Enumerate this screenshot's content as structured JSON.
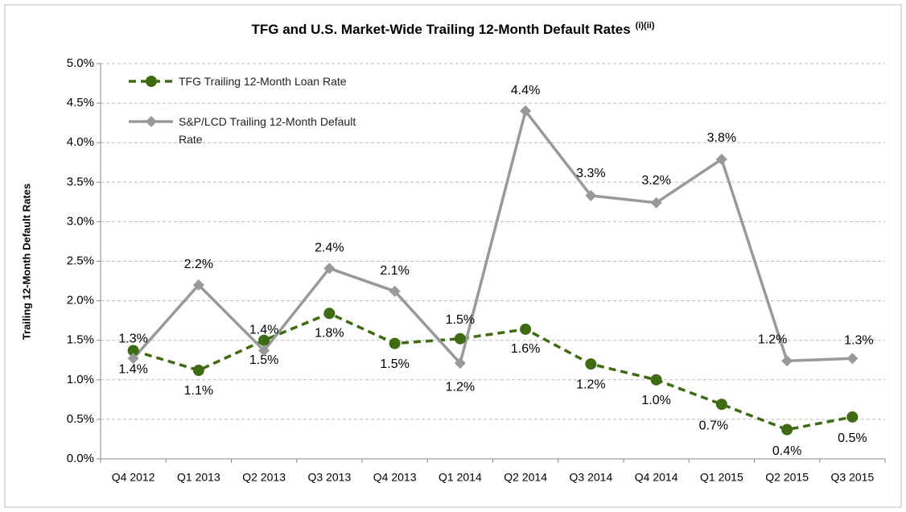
{
  "chart_data": {
    "type": "line",
    "title": "TFG and U.S. Market-Wide Trailing 12-Month  Default Rates",
    "title_note": "(i)(ii)",
    "y_label": "Trailing  12-Month Default Rates",
    "categories": [
      "Q4 2012",
      "Q1 2013",
      "Q2 2013",
      "Q3 2013",
      "Q4 2013",
      "Q1 2014",
      "Q2 2014",
      "Q3 2014",
      "Q4 2014",
      "Q1 2015",
      "Q2 2015",
      "Q3 2015"
    ],
    "series": [
      {
        "name": "TFG Trailing 12-Month Loan Rate",
        "color": "#3f6b12",
        "dashed": true,
        "marker": "circle",
        "values": [
          1.37,
          1.12,
          1.5,
          1.84,
          1.46,
          1.52,
          1.64,
          1.2,
          1.0,
          0.69,
          0.37,
          0.53
        ],
        "value_labels": [
          "1.4%",
          "1.1%",
          "1.5%",
          "1.8%",
          "1.5%",
          "1.5%",
          "1.6%",
          "1.2%",
          "1.0%",
          "0.7%",
          "0.4%",
          "0.5%"
        ]
      },
      {
        "name": "S&P/LCD  Trailing 12-Month Default Rate",
        "color": "#999999",
        "dashed": false,
        "marker": "diamond",
        "values": [
          1.27,
          2.2,
          1.37,
          2.41,
          2.12,
          1.21,
          4.4,
          3.33,
          3.24,
          3.79,
          1.24,
          1.27
        ],
        "value_labels": [
          "1.3%",
          "2.2%",
          "1.4%",
          "2.4%",
          "2.1%",
          "1.2%",
          "4.4%",
          "3.3%",
          "3.2%",
          "3.8%",
          "1.2%",
          "1.3%"
        ]
      }
    ],
    "ylim": [
      0,
      5
    ],
    "yticks": [
      {
        "value": 0,
        "label": "0.0%"
      },
      {
        "value": 0.5,
        "label": "0.5%"
      },
      {
        "value": 1,
        "label": "1.0%"
      },
      {
        "value": 1.5,
        "label": "1.5%"
      },
      {
        "value": 2,
        "label": "2.0%"
      },
      {
        "value": 2.5,
        "label": "2.5%"
      },
      {
        "value": 3,
        "label": "3.0%"
      },
      {
        "value": 3.5,
        "label": "3.5%"
      },
      {
        "value": 4,
        "label": "4.0%"
      },
      {
        "value": 4.5,
        "label": "4.5%"
      },
      {
        "value": 5,
        "label": "5.0%"
      }
    ],
    "grid": true,
    "legend": "top-left"
  }
}
